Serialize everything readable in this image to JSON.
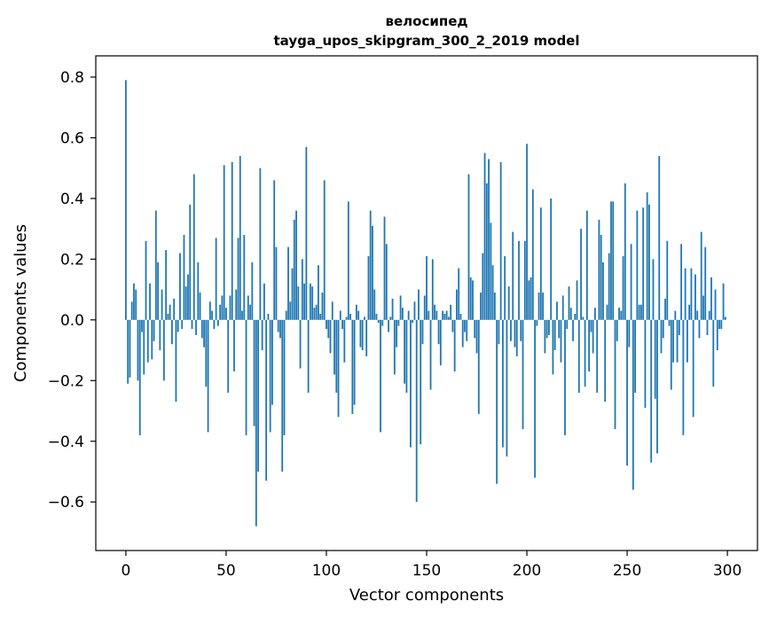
{
  "chart_data": {
    "type": "bar",
    "title": "велосипед",
    "subtitle": "tayga_upos_skipgram_300_2_2019 model",
    "xlabel": "Vector components",
    "ylabel": "Components values",
    "xlim": [
      -15,
      315
    ],
    "ylim": [
      -0.76,
      0.87
    ],
    "xticks": [
      0,
      50,
      100,
      150,
      200,
      250,
      300
    ],
    "xtick_labels": [
      "0",
      "50",
      "100",
      "150",
      "200",
      "250",
      "300"
    ],
    "yticks": [
      -0.6,
      -0.4,
      -0.2,
      0.0,
      0.2,
      0.4,
      0.6,
      0.8
    ],
    "ytick_labels": [
      "−0.6",
      "−0.4",
      "−0.2",
      "0.0",
      "0.2",
      "0.4",
      "0.6",
      "0.8"
    ],
    "grid": false,
    "bar_color": "#1f77b4",
    "series": [
      {
        "values": [
          0.79,
          -0.21,
          -0.19,
          0.06,
          0.12,
          0.1,
          -0.2,
          -0.38,
          -0.04,
          -0.18,
          0.26,
          -0.14,
          0.12,
          -0.13,
          -0.07,
          0.36,
          0.19,
          -0.1,
          0.1,
          -0.2,
          0.23,
          0.02,
          0.05,
          -0.08,
          0.07,
          -0.27,
          -0.04,
          0.22,
          -0.03,
          0.28,
          0.11,
          0.15,
          0.38,
          -0.03,
          0.48,
          -0.05,
          0.19,
          0.09,
          -0.06,
          -0.09,
          -0.22,
          -0.37,
          0.06,
          0.03,
          -0.03,
          0.27,
          -0.02,
          0.05,
          0.08,
          0.51,
          0.04,
          -0.24,
          0.08,
          0.52,
          -0.17,
          0.1,
          0.27,
          0.54,
          0.03,
          0.28,
          -0.38,
          0.08,
          0.05,
          0.19,
          -0.35,
          -0.68,
          -0.5,
          0.5,
          -0.1,
          0.12,
          -0.53,
          0.02,
          -0.37,
          -0.28,
          0.46,
          0.24,
          -0.04,
          -0.06,
          -0.5,
          -0.38,
          0.03,
          0.24,
          0.06,
          0.17,
          0.33,
          0.36,
          0.11,
          -0.16,
          0.2,
          0.12,
          0.57,
          -0.24,
          0.12,
          0.11,
          0.04,
          0.05,
          0.18,
          0.02,
          0.09,
          0.46,
          -0.03,
          -0.06,
          -0.11,
          0.06,
          -0.18,
          -0.24,
          -0.32,
          0.03,
          -0.03,
          -0.14,
          0.01,
          0.39,
          0.02,
          -0.31,
          -0.28,
          0.05,
          0.03,
          -0.09,
          -0.1,
          0.01,
          -0.12,
          0.21,
          0.36,
          0.31,
          0.1,
          0.02,
          -0.01,
          -0.37,
          -0.02,
          0.34,
          0.25,
          -0.04,
          0.01,
          0.07,
          -0.18,
          -0.09,
          -0.02,
          0.08,
          0.04,
          -0.21,
          -0.24,
          0.03,
          -0.42,
          -0.01,
          0.06,
          -0.6,
          0.1,
          -0.41,
          -0.08,
          0.08,
          0.21,
          0.03,
          -0.23,
          0.2,
          0.05,
          0.03,
          -0.08,
          -0.15,
          0.03,
          0.02,
          0.03,
          0.01,
          0.05,
          -0.04,
          -0.17,
          0.1,
          0.17,
          0.02,
          -0.09,
          -0.04,
          -0.07,
          0.48,
          0.14,
          0.13,
          -0.06,
          -0.11,
          -0.31,
          0.09,
          0.22,
          0.55,
          0.45,
          0.53,
          0.32,
          0.18,
          0.09,
          -0.54,
          -0.08,
          0.52,
          -0.42,
          0.21,
          -0.45,
          0.11,
          -0.07,
          0.29,
          -0.09,
          -0.12,
          0.26,
          -0.07,
          -0.36,
          0.26,
          0.58,
          0.13,
          0.14,
          0.43,
          -0.52,
          -0.02,
          0.09,
          0.37,
          0.09,
          -0.11,
          -0.06,
          -0.05,
          0.4,
          -0.18,
          -0.1,
          0.06,
          -0.06,
          -0.14,
          0.08,
          -0.38,
          -0.03,
          0.11,
          0.04,
          -0.07,
          0.02,
          0.13,
          -0.24,
          0.3,
          0.01,
          -0.22,
          0.36,
          -0.17,
          -0.04,
          -0.11,
          0.04,
          -0.24,
          0.33,
          0.28,
          0.19,
          -0.27,
          0.05,
          0.22,
          0.39,
          0.39,
          -0.36,
          -0.07,
          0.04,
          0.03,
          0.21,
          0.45,
          -0.48,
          -0.09,
          0.25,
          -0.56,
          -0.24,
          0.36,
          0.05,
          0.05,
          0.37,
          -0.29,
          0.42,
          0.38,
          -0.47,
          0.2,
          -0.26,
          -0.44,
          0.54,
          -0.11,
          -0.06,
          0.07,
          0.26,
          -0.02,
          -0.23,
          -0.14,
          0.03,
          -0.14,
          -0.05,
          0.25,
          -0.38,
          0.17,
          -0.14,
          0.05,
          0.17,
          -0.32,
          0.15,
          0.03,
          -0.06,
          0.29,
          0.08,
          0.24,
          -0.05,
          0.03,
          0.14,
          -0.22,
          0.1,
          -0.1,
          -0.03,
          -0.03,
          0.12,
          0.01
        ]
      }
    ]
  }
}
